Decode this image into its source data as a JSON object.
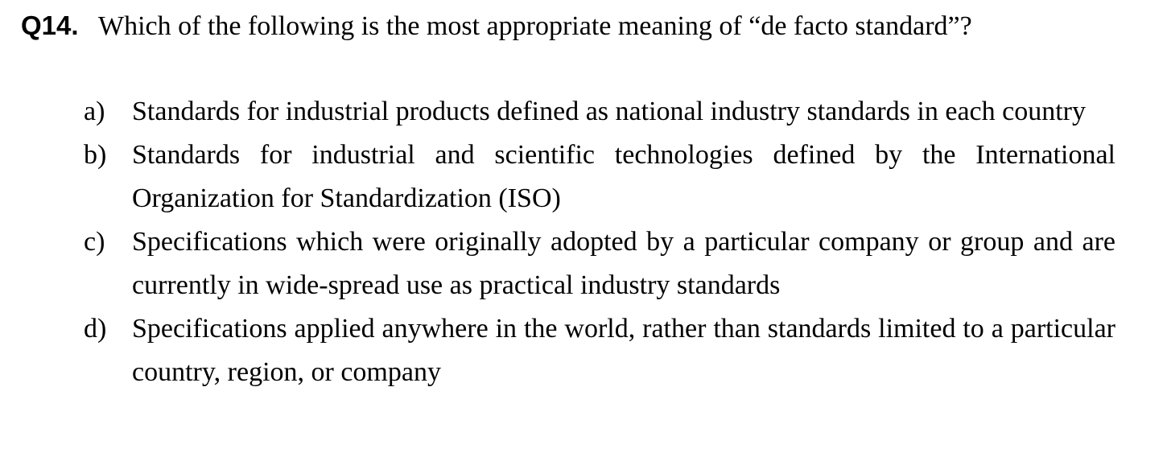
{
  "question": {
    "number": "Q14.",
    "text": "Which of the following is the most appropriate meaning of “de facto standard”?"
  },
  "choices": [
    {
      "letter": "a)",
      "text": "Standards for industrial products defined as national industry standards in each country"
    },
    {
      "letter": "b)",
      "text": "Standards for industrial and scientific technologies defined by the International Organization for Standardization (ISO)"
    },
    {
      "letter": "c)",
      "text": "Specifications which were originally adopted by a particular company or group and are currently in wide-spread use as practical industry standards"
    },
    {
      "letter": "d)",
      "text": "Specifications applied anywhere in the world, rather than standards limited to a particular country, region, or company"
    }
  ]
}
